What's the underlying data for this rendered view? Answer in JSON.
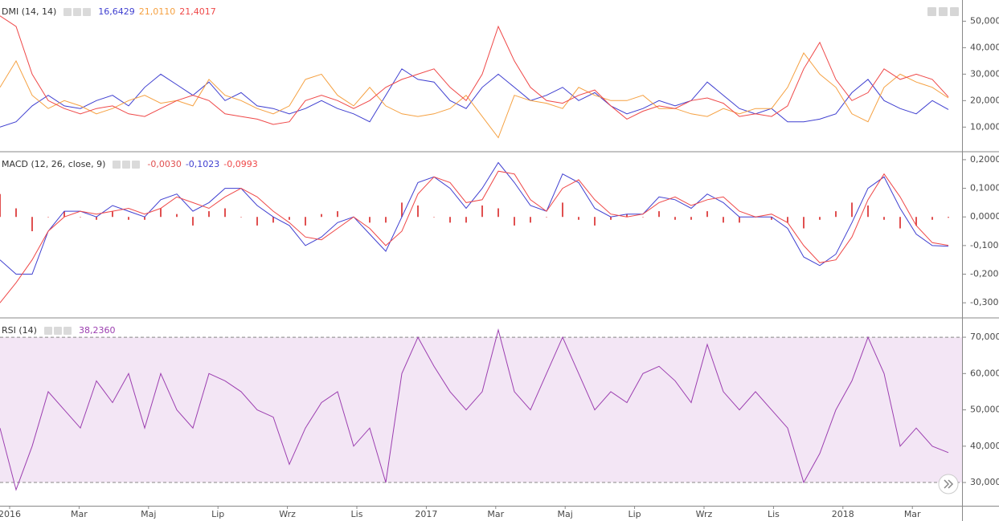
{
  "chart_data": [
    {
      "type": "line",
      "title": "DMI (14, 14)",
      "ylim": [
        1,
        58
      ],
      "yticks": [
        {
          "value": 10,
          "label": "10,0000"
        },
        {
          "value": 20,
          "label": "20,0000"
        },
        {
          "value": 30,
          "label": "30,0000"
        },
        {
          "value": 40,
          "label": "40,0000"
        },
        {
          "value": 50,
          "label": "50,0000"
        }
      ],
      "series": [
        {
          "type": "line",
          "color": "#3f3fd0",
          "value_label": "16,6429",
          "values": [
            10,
            12,
            18,
            22,
            18,
            17,
            20,
            22,
            18,
            25,
            30,
            26,
            22,
            27,
            20,
            23,
            18,
            17,
            15,
            17,
            20,
            17,
            15,
            12,
            22,
            32,
            28,
            27,
            20,
            17,
            25,
            30,
            25,
            20,
            22,
            25,
            20,
            23,
            18,
            15,
            17,
            20,
            18,
            20,
            27,
            22,
            17,
            15,
            17,
            12,
            12,
            13,
            15,
            23,
            28,
            20,
            17,
            15,
            20,
            16.6429
          ]
        },
        {
          "type": "line",
          "color": "#f5a040",
          "value_label": "21,0110",
          "values": [
            25,
            35,
            22,
            17,
            20,
            18,
            15,
            17,
            20,
            22,
            19,
            20,
            18,
            28,
            22,
            20,
            17,
            15,
            18,
            28,
            30,
            22,
            18,
            25,
            18,
            15,
            14,
            15,
            17,
            22,
            14,
            6,
            22,
            20,
            19,
            17,
            25,
            22,
            20,
            20,
            22,
            17,
            17,
            15,
            14,
            17,
            15,
            17,
            17,
            25,
            38,
            30,
            25,
            15,
            12,
            25,
            30,
            27,
            25,
            21.011
          ]
        },
        {
          "type": "line",
          "color": "#ef4848",
          "value_label": "21,4017",
          "values": [
            52,
            48,
            30,
            20,
            17,
            15,
            17,
            18,
            15,
            14,
            17,
            20,
            22,
            20,
            15,
            14,
            13,
            11,
            12,
            20,
            22,
            20,
            17,
            20,
            25,
            28,
            30,
            32,
            25,
            20,
            30,
            48,
            35,
            25,
            20,
            19,
            22,
            24,
            18,
            13,
            16,
            18,
            17,
            20,
            21,
            19,
            14,
            15,
            14,
            18,
            32,
            42,
            28,
            20,
            23,
            32,
            28,
            30,
            28,
            21.4017
          ]
        }
      ]
    },
    {
      "type": "line",
      "title": "MACD (12, 26, close, 9)",
      "ylim": [
        -0.35,
        0.225
      ],
      "yticks": [
        {
          "value": -0.3,
          "label": "-0,3000"
        },
        {
          "value": -0.2,
          "label": "-0,2000"
        },
        {
          "value": -0.1,
          "label": "-0,1000"
        },
        {
          "value": 0,
          "label": "0,0000"
        },
        {
          "value": 0.1,
          "label": "0,1000"
        },
        {
          "value": 0.2,
          "label": "0,2000"
        }
      ],
      "series": [
        {
          "type": "bar",
          "color": "#e05050",
          "value_label": "-0,0030",
          "values": [
            0.08,
            0.03,
            -0.05,
            0,
            0.02,
            0,
            -0.01,
            0.02,
            -0.01,
            -0.01,
            0.03,
            0.01,
            -0.03,
            0.02,
            0.03,
            0,
            -0.03,
            -0.02,
            -0.01,
            -0.03,
            0.01,
            0.02,
            0,
            -0.02,
            -0.02,
            0.05,
            0.04,
            0,
            -0.02,
            -0.02,
            0.04,
            0.03,
            -0.03,
            -0.02,
            0,
            0.05,
            -0.01,
            -0.03,
            -0.01,
            0.01,
            0,
            0.02,
            -0.01,
            -0.01,
            0.02,
            -0.02,
            -0.02,
            0,
            -0.01,
            -0.02,
            -0.04,
            -0.01,
            0.02,
            0.05,
            0.04,
            -0.01,
            -0.04,
            -0.03,
            -0.01,
            -0.003
          ]
        },
        {
          "type": "line",
          "color": "#3f3fd0",
          "value_label": "-0,1023",
          "values": [
            -0.15,
            -0.2,
            -0.2,
            -0.05,
            0.02,
            0.02,
            0,
            0.04,
            0.02,
            0,
            0.06,
            0.08,
            0.02,
            0.05,
            0.1,
            0.1,
            0.04,
            0,
            -0.03,
            -0.1,
            -0.07,
            -0.02,
            0,
            -0.06,
            -0.12,
            0,
            0.12,
            0.14,
            0.1,
            0.03,
            0.1,
            0.19,
            0.12,
            0.04,
            0.02,
            0.15,
            0.12,
            0.03,
            0,
            0.01,
            0.01,
            0.07,
            0.06,
            0.03,
            0.08,
            0.05,
            0,
            0,
            0,
            -0.04,
            -0.14,
            -0.17,
            -0.13,
            -0.02,
            0.1,
            0.14,
            0.03,
            -0.06,
            -0.1,
            -0.1023
          ]
        },
        {
          "type": "line",
          "color": "#ef4848",
          "value_label": "-0,0993",
          "values": [
            -0.3,
            -0.23,
            -0.15,
            -0.05,
            0,
            0.02,
            0.01,
            0.02,
            0.03,
            0.01,
            0.03,
            0.07,
            0.05,
            0.03,
            0.07,
            0.1,
            0.07,
            0.02,
            -0.02,
            -0.07,
            -0.08,
            -0.04,
            0,
            -0.04,
            -0.1,
            -0.05,
            0.08,
            0.14,
            0.12,
            0.05,
            0.06,
            0.16,
            0.15,
            0.06,
            0.02,
            0.1,
            0.13,
            0.06,
            0.01,
            0,
            0.01,
            0.05,
            0.07,
            0.04,
            0.06,
            0.07,
            0.02,
            0,
            0.01,
            -0.02,
            -0.1,
            -0.16,
            -0.15,
            -0.07,
            0.06,
            0.15,
            0.07,
            -0.03,
            -0.09,
            -0.0993
          ]
        }
      ]
    },
    {
      "type": "line",
      "title": "RSI (14)",
      "ylim": [
        23.6,
        75.1
      ],
      "yticks": [
        {
          "value": 30,
          "label": "30,0000"
        },
        {
          "value": 40,
          "label": "40,0000"
        },
        {
          "value": 50,
          "label": "50,0000"
        },
        {
          "value": 60,
          "label": "60,0000"
        },
        {
          "value": 70,
          "label": "70,0000"
        }
      ],
      "band": [
        30,
        70
      ],
      "band_color": "#f3e6f5",
      "series": [
        {
          "type": "line",
          "color": "#9c3fb0",
          "value_label": "38,2360",
          "values": [
            45,
            28,
            40,
            55,
            50,
            45,
            58,
            52,
            60,
            45,
            60,
            50,
            45,
            60,
            58,
            55,
            50,
            48,
            35,
            45,
            52,
            55,
            40,
            45,
            30,
            60,
            70,
            62,
            55,
            50,
            55,
            72,
            55,
            50,
            60,
            70,
            60,
            50,
            55,
            52,
            60,
            62,
            58,
            52,
            68,
            55,
            50,
            55,
            50,
            45,
            30,
            38,
            50,
            58,
            70,
            60,
            40,
            45,
            40,
            38.236
          ]
        }
      ],
      "xticks": [
        "2016",
        "Mar",
        "Maj",
        "Lip",
        "Wrz",
        "Lis",
        "2017",
        "Mar",
        "Maj",
        "Lip",
        "Wrz",
        "Lis",
        "2018",
        "Mar"
      ]
    }
  ]
}
